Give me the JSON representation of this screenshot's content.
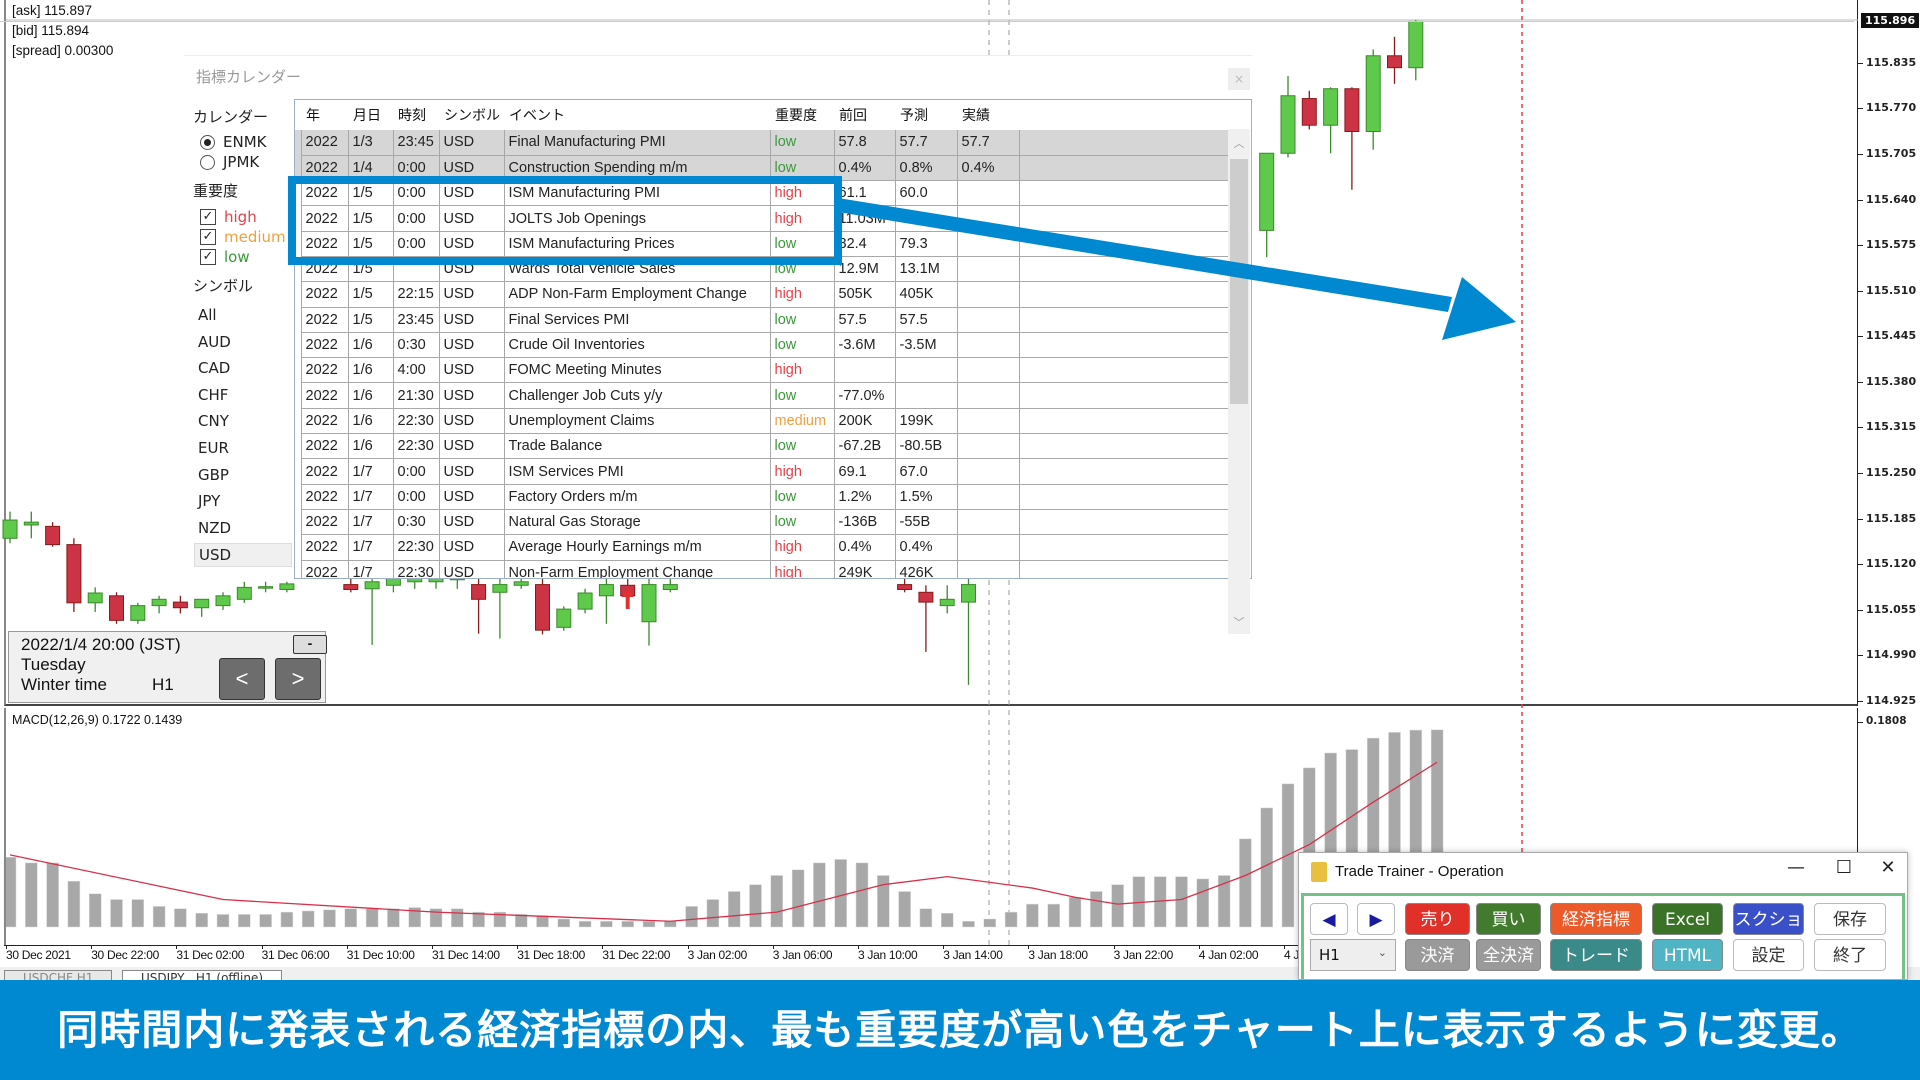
{
  "quote": {
    "ask": "[ask] 115.897",
    "bid": "[bid] 115.894",
    "spread": "[spread] 0.00300"
  },
  "price_axis": {
    "current": "115.896",
    "ticks": [
      "115.835",
      "115.770",
      "115.705",
      "115.640",
      "115.575",
      "115.510",
      "115.445",
      "115.380",
      "115.315",
      "115.250",
      "115.185",
      "115.120",
      "115.055",
      "114.990",
      "114.925"
    ],
    "macd_max": "0.1808"
  },
  "chart": {
    "price_range": [
      114.925,
      115.896
    ],
    "colors": {
      "bull": "#5ec94a",
      "bull_edge": "#3a8a2a",
      "bear": "#cc3344",
      "bear_edge": "#8b1a1a",
      "signal": "#d8304a",
      "hist": "#a8a8a8",
      "marker_line": "#e83a3a"
    },
    "candles": [
      [
        115.157,
        115.195,
        115.15,
        115.183
      ],
      [
        115.176,
        115.195,
        115.157,
        115.18
      ],
      [
        115.174,
        115.18,
        115.145,
        115.148
      ],
      [
        115.148,
        115.157,
        115.052,
        115.065
      ],
      [
        115.065,
        115.087,
        115.052,
        115.079
      ],
      [
        115.075,
        115.08,
        115.035,
        115.04
      ],
      [
        115.04,
        115.065,
        115.035,
        115.061
      ],
      [
        115.061,
        115.075,
        115.05,
        115.07
      ],
      [
        115.066,
        115.075,
        115.05,
        115.058
      ],
      [
        115.058,
        115.07,
        115.045,
        115.07
      ],
      [
        115.061,
        115.08,
        115.055,
        115.075
      ],
      [
        115.07,
        115.095,
        115.065,
        115.087
      ],
      [
        115.087,
        115.095,
        115.08,
        115.088
      ],
      [
        115.084,
        115.095,
        115.08,
        115.092
      ],
      null,
      null,
      [
        115.091,
        115.105,
        115.08,
        115.084
      ],
      [
        115.085,
        115.105,
        115.005,
        115.095
      ],
      [
        115.09,
        115.105,
        115.08,
        115.1
      ],
      [
        115.095,
        115.105,
        115.085,
        115.1
      ],
      [
        115.095,
        115.105,
        115.085,
        115.1
      ],
      [
        115.1,
        115.105,
        115.085,
        115.1
      ],
      [
        115.091,
        115.105,
        115.021,
        115.07
      ],
      [
        115.08,
        115.105,
        115.014,
        115.091
      ],
      [
        115.09,
        115.105,
        115.085,
        115.095
      ],
      [
        115.091,
        115.105,
        115.02,
        115.026
      ],
      [
        115.03,
        115.06,
        115.025,
        115.056
      ],
      [
        115.056,
        115.085,
        115.05,
        115.079
      ],
      [
        115.075,
        115.105,
        115.035,
        115.091
      ],
      [
        115.09,
        115.1,
        115.06,
        115.075
      ],
      [
        115.038,
        115.105,
        115.004,
        115.091
      ],
      [
        115.084,
        115.105,
        115.08,
        115.091
      ],
      null,
      null,
      null,
      null,
      null,
      null,
      null,
      null,
      null,
      null,
      [
        115.091,
        115.105,
        115.08,
        115.084
      ],
      [
        115.08,
        115.09,
        114.995,
        115.066
      ],
      [
        115.061,
        115.09,
        115.05,
        115.07
      ],
      [
        115.066,
        115.105,
        114.948,
        115.091
      ],
      null,
      null,
      null,
      null,
      null,
      null,
      null,
      null,
      null,
      null,
      null,
      null,
      null,
      [
        115.596,
        115.706,
        115.558,
        115.706
      ],
      [
        115.706,
        115.816,
        115.7,
        115.788
      ],
      [
        115.784,
        115.795,
        115.74,
        115.746
      ],
      [
        115.746,
        115.8,
        115.706,
        115.798
      ],
      [
        115.798,
        115.8,
        115.654,
        115.737
      ],
      [
        115.737,
        115.854,
        115.711,
        115.845
      ],
      [
        115.845,
        115.872,
        115.805,
        115.828
      ],
      [
        115.828,
        115.896,
        115.81,
        115.894
      ]
    ],
    "macd_hist": [
      0.061,
      0.056,
      0.056,
      0.04,
      0.029,
      0.024,
      0.024,
      0.018,
      0.016,
      0.012,
      0.011,
      0.011,
      0.011,
      0.013,
      0.014,
      0.015,
      0.016,
      0.016,
      0.016,
      0.017,
      0.016,
      0.016,
      0.013,
      0.013,
      0.011,
      0.01,
      0.007,
      0.005,
      0.005,
      0.005,
      0.005,
      0.005,
      0.018,
      0.024,
      0.031,
      0.037,
      0.045,
      0.05,
      0.056,
      0.059,
      0.056,
      0.045,
      0.031,
      0.016,
      0.012,
      0.005,
      0.007,
      0.013,
      0.02,
      0.02,
      0.026,
      0.031,
      0.037,
      0.044,
      0.044,
      0.044,
      0.042,
      0.045,
      0.077,
      0.104,
      0.125,
      0.139,
      0.152,
      0.155,
      0.165,
      0.17,
      0.172,
      0.1722
    ],
    "macd_signal_points": [
      [
        0,
        0.063
      ],
      [
        10,
        0.024
      ],
      [
        20,
        0.013
      ],
      [
        31,
        0.005
      ],
      [
        36,
        0.013
      ],
      [
        41,
        0.037
      ],
      [
        44,
        0.044
      ],
      [
        48,
        0.034
      ],
      [
        50,
        0.026
      ],
      [
        52,
        0.02
      ],
      [
        55,
        0.024
      ],
      [
        58,
        0.045
      ],
      [
        61,
        0.072
      ],
      [
        64,
        0.109
      ],
      [
        67,
        0.1439
      ]
    ],
    "marker_bar": 29
  },
  "macd_label": "MACD(12,26,9) 0.1722 0.1439",
  "time_axis": [
    "30 Dec 2021",
    "30 Dec 22:00",
    "31 Dec 02:00",
    "31 Dec 06:00",
    "31 Dec 10:00",
    "31 Dec 14:00",
    "31 Dec 18:00",
    "31 Dec 22:00",
    "3 Jan 02:00",
    "3 Jan 06:00",
    "3 Jan 10:00",
    "3 Jan 14:00",
    "3 Jan 18:00",
    "3 Jan 22:00",
    "4 Jan 02:00",
    "4 J"
  ],
  "chart_tabs": [
    "USDCHF,H1",
    "USDJPY , H1 (offline)"
  ],
  "calendar": {
    "title": "指標カレンダー",
    "close": "×",
    "calendar_label": "カレンダー",
    "sources": [
      {
        "label": "ENMK",
        "selected": true
      },
      {
        "label": "JPMK",
        "selected": false
      }
    ],
    "importance_label": "重要度",
    "importance": [
      {
        "label": "high",
        "checked": true,
        "color": "#e8404a"
      },
      {
        "label": "medium",
        "checked": true,
        "color": "#f0a040"
      },
      {
        "label": "low",
        "checked": true,
        "color": "#3a9a3a"
      }
    ],
    "symbol_label": "シンボル",
    "symbols": [
      "All",
      "AUD",
      "CAD",
      "CHF",
      "CNY",
      "EUR",
      "GBP",
      "JPY",
      "NZD",
      "USD"
    ],
    "selected_symbol": "USD",
    "columns": [
      "年",
      "月日",
      "時刻",
      "シンボル",
      "イベント",
      "重要度",
      "前回",
      "予測",
      "実績"
    ],
    "rows": [
      {
        "y": "2022",
        "d": "1/3",
        "t": "23:45",
        "s": "USD",
        "e": "Final Manufacturing PMI",
        "i": "low",
        "p": "57.8",
        "f": "57.7",
        "a": "57.7",
        "past": true
      },
      {
        "y": "2022",
        "d": "1/4",
        "t": "0:00",
        "s": "USD",
        "e": "Construction Spending m/m",
        "i": "low",
        "p": "0.4%",
        "f": "0.8%",
        "a": "0.4%",
        "past": true
      },
      {
        "y": "2022",
        "d": "1/5",
        "t": "0:00",
        "s": "USD",
        "e": "ISM Manufacturing PMI",
        "i": "high",
        "p": "61.1",
        "f": "60.0",
        "a": ""
      },
      {
        "y": "2022",
        "d": "1/5",
        "t": "0:00",
        "s": "USD",
        "e": "JOLTS Job Openings",
        "i": "high",
        "p": "11.03M",
        "f": "",
        "a": ""
      },
      {
        "y": "2022",
        "d": "1/5",
        "t": "0:00",
        "s": "USD",
        "e": "ISM Manufacturing Prices",
        "i": "low",
        "p": "82.4",
        "f": "79.3",
        "a": ""
      },
      {
        "y": "2022",
        "d": "1/5",
        "t": "",
        "s": "USD",
        "e": "Wards Total Vehicle Sales",
        "i": "low",
        "p": "12.9M",
        "f": "13.1M",
        "a": ""
      },
      {
        "y": "2022",
        "d": "1/5",
        "t": "22:15",
        "s": "USD",
        "e": "ADP Non-Farm Employment Change",
        "i": "high",
        "p": "505K",
        "f": "405K",
        "a": ""
      },
      {
        "y": "2022",
        "d": "1/5",
        "t": "23:45",
        "s": "USD",
        "e": "Final Services PMI",
        "i": "low",
        "p": "57.5",
        "f": "57.5",
        "a": ""
      },
      {
        "y": "2022",
        "d": "1/6",
        "t": "0:30",
        "s": "USD",
        "e": "Crude Oil Inventories",
        "i": "low",
        "p": "-3.6M",
        "f": "-3.5M",
        "a": ""
      },
      {
        "y": "2022",
        "d": "1/6",
        "t": "4:00",
        "s": "USD",
        "e": "FOMC Meeting Minutes",
        "i": "high",
        "p": "",
        "f": "",
        "a": ""
      },
      {
        "y": "2022",
        "d": "1/6",
        "t": "21:30",
        "s": "USD",
        "e": "Challenger Job Cuts y/y",
        "i": "low",
        "p": "-77.0%",
        "f": "",
        "a": ""
      },
      {
        "y": "2022",
        "d": "1/6",
        "t": "22:30",
        "s": "USD",
        "e": "Unemployment Claims",
        "i": "medium",
        "p": "200K",
        "f": "199K",
        "a": ""
      },
      {
        "y": "2022",
        "d": "1/6",
        "t": "22:30",
        "s": "USD",
        "e": "Trade Balance",
        "i": "low",
        "p": "-67.2B",
        "f": "-80.5B",
        "a": ""
      },
      {
        "y": "2022",
        "d": "1/7",
        "t": "0:00",
        "s": "USD",
        "e": "ISM Services PMI",
        "i": "high",
        "p": "69.1",
        "f": "67.0",
        "a": ""
      },
      {
        "y": "2022",
        "d": "1/7",
        "t": "0:00",
        "s": "USD",
        "e": "Factory Orders m/m",
        "i": "low",
        "p": "1.2%",
        "f": "1.5%",
        "a": ""
      },
      {
        "y": "2022",
        "d": "1/7",
        "t": "0:30",
        "s": "USD",
        "e": "Natural Gas Storage",
        "i": "low",
        "p": "-136B",
        "f": "-55B",
        "a": ""
      },
      {
        "y": "2022",
        "d": "1/7",
        "t": "22:30",
        "s": "USD",
        "e": "Average Hourly Earnings m/m",
        "i": "high",
        "p": "0.4%",
        "f": "0.4%",
        "a": ""
      },
      {
        "y": "2022",
        "d": "1/7",
        "t": "22:30",
        "s": "USD",
        "e": "Non-Farm Employment Change",
        "i": "high",
        "p": "249K",
        "f": "426K",
        "a": ""
      }
    ]
  },
  "infobox": {
    "datetime": "2022/1/4 20:00 (JST)",
    "weekday": "Tuesday",
    "season": "Winter time",
    "timeframe": "H1",
    "minimize": "-",
    "prev": "<",
    "next": ">"
  },
  "trade_trainer": {
    "title": "Trade Trainer - Operation",
    "minimize": "—",
    "maximize": "☐",
    "close": "✕",
    "prev": "◀",
    "next": "▶",
    "timeframe": "H1",
    "buttons_row1": [
      {
        "label": "売り",
        "color": "#e03028"
      },
      {
        "label": "買い",
        "color": "#427a2e"
      },
      {
        "label": "経済指標",
        "color": "#ec5a2a"
      },
      {
        "label": "Excel",
        "color": "#3a7228"
      },
      {
        "label": "スクショ",
        "color": "#3a50c8"
      },
      {
        "label": "保存",
        "color": "#ffffff"
      }
    ],
    "buttons_row2": [
      {
        "label": "決済",
        "color": "#9a9a9a"
      },
      {
        "label": "全決済",
        "color": "#9a9a9a"
      },
      {
        "label": "トレード",
        "color": "#3a8a8a"
      },
      {
        "label": "HTML",
        "color": "#50b4c4"
      },
      {
        "label": "設定",
        "color": "#ffffff"
      },
      {
        "label": "終了",
        "color": "#ffffff"
      }
    ]
  },
  "annotation": {
    "color": "#0088d1"
  },
  "banner": "同時間内に発表される経済指標の内、最も重要度が高い色をチャート上に表示するように変更。"
}
